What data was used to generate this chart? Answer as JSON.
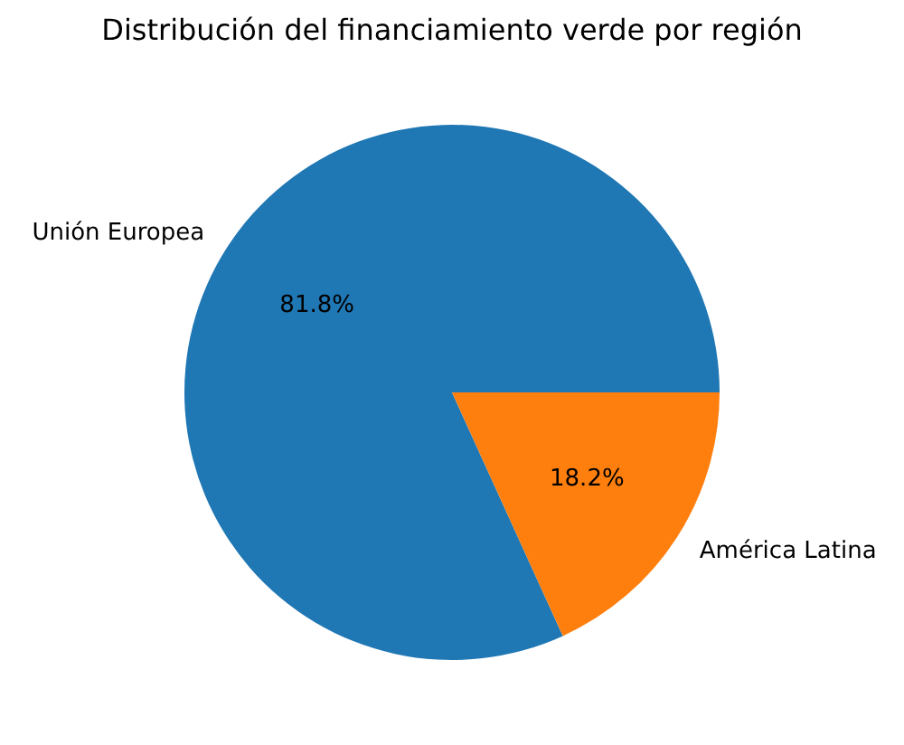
{
  "chart_data": {
    "type": "pie",
    "title": "Distribución del financiamiento verde por región",
    "categories": [
      "Unión Europea",
      "América Latina"
    ],
    "values": [
      81.8,
      18.2
    ],
    "colors": [
      "#1f77b4",
      "#ff7f0e"
    ],
    "value_labels": [
      "81.8%",
      "18.2%"
    ],
    "legend": false
  }
}
